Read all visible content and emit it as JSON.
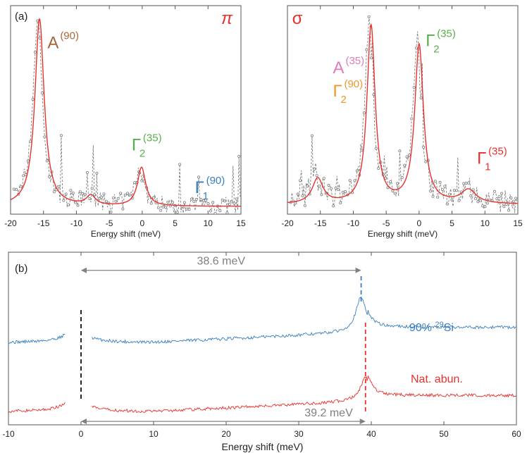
{
  "colors": {
    "frame": "#555555",
    "fit_red": "#e8312d",
    "exp_gray": "#7f7f7f",
    "blue": "#3a7fbf",
    "brown": "#a8663a",
    "green": "#58b04a",
    "pink": "#e07cb8",
    "orange": "#f0962f",
    "annot_gray": "#808080",
    "title_red": "#e8312d"
  },
  "chart_data": [
    {
      "id": "pi",
      "type": "line",
      "panel_label": "(a)",
      "title": "π",
      "xlabel": "Energy shift (meV)",
      "ylabel": "",
      "xlim": [
        -20,
        15
      ],
      "ylim": [
        0,
        1.08
      ],
      "xticks": [
        "-20",
        "-15",
        "-10",
        "-5",
        "0",
        "5",
        "10",
        "15"
      ],
      "fit": {
        "baseline": 0.04,
        "peaks": [
          {
            "center": -15.6,
            "height": 0.97,
            "width": 0.85
          },
          {
            "center": -7.8,
            "height": 0.05,
            "width": 0.8
          },
          {
            "center": -0.1,
            "height": 0.2,
            "width": 0.75
          }
        ]
      },
      "exp_seed": 7,
      "exp_scatter": 0.09,
      "annotations": [
        {
          "base": "A",
          "sup": "(90)",
          "sub": "",
          "x": -14.4,
          "y": 0.86,
          "color": "brown"
        },
        {
          "base": "Γ",
          "sup": "(35)",
          "sub": "2",
          "x": -1.6,
          "y": 0.33,
          "color": "green"
        },
        {
          "base": "Γ",
          "sup": "(90)",
          "sub": "1",
          "x": 8.0,
          "y": 0.11,
          "color": "blue"
        }
      ]
    },
    {
      "id": "sigma",
      "type": "line",
      "title": "σ",
      "xlabel": "Energy shift (meV)",
      "ylabel": "",
      "xlim": [
        -20,
        15
      ],
      "ylim": [
        0,
        1.08
      ],
      "xticks": [
        "-20",
        "-15",
        "-10",
        "-5",
        "0",
        "5",
        "10",
        "15"
      ],
      "fit": {
        "baseline": 0.05,
        "peaks": [
          {
            "center": -15.4,
            "height": 0.13,
            "width": 1.0
          },
          {
            "center": -7.3,
            "height": 0.92,
            "width": 0.75
          },
          {
            "center": 0.0,
            "height": 0.82,
            "width": 0.8
          },
          {
            "center": 7.5,
            "height": 0.07,
            "width": 1.4
          }
        ]
      },
      "exp_seed": 11,
      "exp_scatter": 0.12,
      "annotations": [
        {
          "base": "A",
          "sup": "(35)",
          "sub": "",
          "x": -13.1,
          "y": 0.73,
          "color": "pink"
        },
        {
          "base": "Γ",
          "sup": "(90)",
          "sub": "2",
          "x": -13.1,
          "y": 0.61,
          "color": "orange"
        },
        {
          "base": "Γ",
          "sup": "(35)",
          "sub": "2",
          "x": 1.0,
          "y": 0.87,
          "color": "green"
        },
        {
          "base": "Γ",
          "sup": "(35)",
          "sub": "1",
          "x": 8.8,
          "y": 0.26,
          "color": "title_red"
        }
      ]
    },
    {
      "id": "b",
      "type": "line",
      "panel_label": "(b)",
      "xlabel": "Energy shift (meV)",
      "ylabel": "",
      "xlim": [
        -10,
        60
      ],
      "ylim": [
        0,
        1
      ],
      "xticks": [
        "-10",
        "0",
        "10",
        "20",
        "30",
        "40",
        "50",
        "60"
      ],
      "series": [
        {
          "name": "90% ²⁹Si",
          "color": "blue",
          "label_prefix": "90% ",
          "label_sup": "29",
          "label_suffix": "Si",
          "offset": 0.47,
          "peak": 38.6,
          "peak_height": 0.2,
          "level": 0.36
        },
        {
          "name": "Nat. abun.",
          "color": "fit_red",
          "label_prefix": "Nat. abun.",
          "label_sup": "",
          "label_suffix": "",
          "offset": 0.07,
          "peak": 39.2,
          "peak_height": 0.13,
          "level": 0.39
        }
      ],
      "markers": [
        {
          "x": 0,
          "color": "#111111"
        },
        {
          "x": 38.6,
          "color": "blue"
        },
        {
          "x": 39.2,
          "color": "fit_red"
        }
      ],
      "arrows": [
        {
          "from": 0,
          "to": 38.6,
          "label": "38.6 meV",
          "y": 0.895
        },
        {
          "from": 0,
          "to": 39.2,
          "label": "39.2 meV",
          "y": 0.02
        }
      ]
    }
  ]
}
